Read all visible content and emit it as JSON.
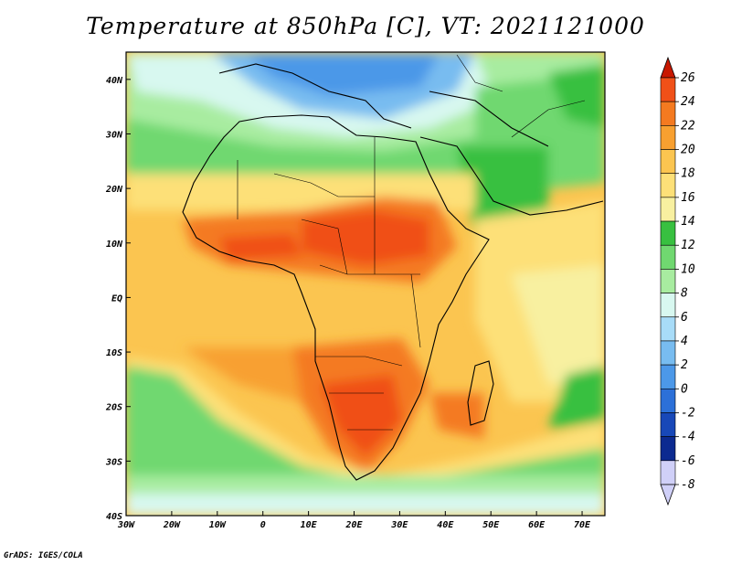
{
  "title": "Temperature at 850hPa [C], VT: 2021121000",
  "footer": "GrADS: IGES/COLA",
  "map": {
    "lon_range": [
      -30,
      75
    ],
    "lat_range": [
      -40,
      45
    ],
    "lat_ticks": [
      {
        "value": 40,
        "label": "40N"
      },
      {
        "value": 30,
        "label": "30N"
      },
      {
        "value": 20,
        "label": "20N"
      },
      {
        "value": 10,
        "label": "10N"
      },
      {
        "value": 0,
        "label": "EQ"
      },
      {
        "value": -10,
        "label": "10S"
      },
      {
        "value": -20,
        "label": "20S"
      },
      {
        "value": -30,
        "label": "30S"
      },
      {
        "value": -40,
        "label": "40S"
      }
    ],
    "lon_ticks": [
      {
        "value": -30,
        "label": "30W"
      },
      {
        "value": -20,
        "label": "20W"
      },
      {
        "value": -10,
        "label": "10W"
      },
      {
        "value": 0,
        "label": "0"
      },
      {
        "value": 10,
        "label": "10E"
      },
      {
        "value": 20,
        "label": "20E"
      },
      {
        "value": 30,
        "label": "30E"
      },
      {
        "value": 40,
        "label": "40E"
      },
      {
        "value": 50,
        "label": "50E"
      },
      {
        "value": 60,
        "label": "60E"
      },
      {
        "value": 70,
        "label": "70E"
      }
    ]
  },
  "colorbar": {
    "levels": [
      {
        "label": "26",
        "color": "#e03010"
      },
      {
        "label": "24",
        "color": "#f05018"
      },
      {
        "label": "22",
        "color": "#f47a20"
      },
      {
        "label": "20",
        "color": "#f8a030"
      },
      {
        "label": "18",
        "color": "#fbc550"
      },
      {
        "label": "16",
        "color": "#fde078"
      },
      {
        "label": "14",
        "color": "#f8f0a0"
      },
      {
        "label": "12",
        "color": "#38c040"
      },
      {
        "label": "10",
        "color": "#70d870"
      },
      {
        "label": "8",
        "color": "#a8eca0"
      },
      {
        "label": "6",
        "color": "#d8f8f0"
      },
      {
        "label": "4",
        "color": "#a8dcf8"
      },
      {
        "label": "2",
        "color": "#78bcf0"
      },
      {
        "label": "0",
        "color": "#4c98e8"
      },
      {
        "label": "-2",
        "color": "#2c70d8"
      },
      {
        "label": "-4",
        "color": "#1848b8"
      },
      {
        "label": "-6",
        "color": "#0c2a90"
      },
      {
        "label": "-8",
        "color": "#d0d0f8"
      }
    ],
    "top_color": "#c81800",
    "bottom_color": "#0c1470"
  }
}
